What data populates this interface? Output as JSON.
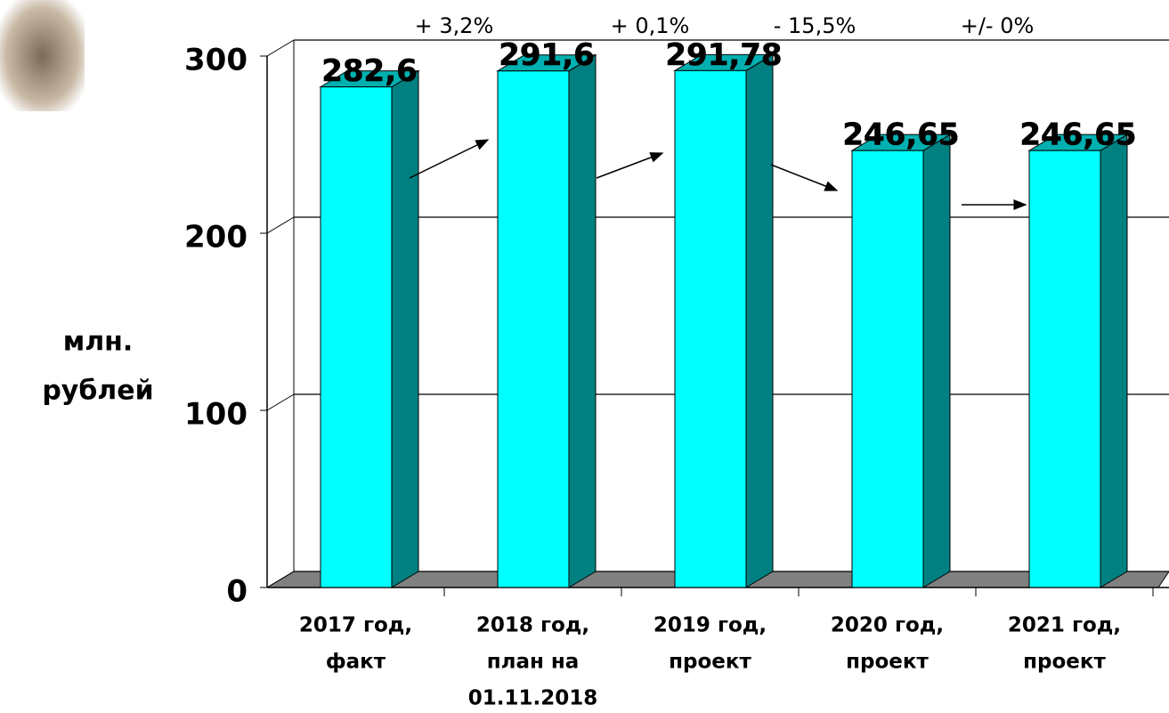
{
  "chart_data": {
    "type": "bar3d",
    "y_label": [
      "млн.",
      "рублей"
    ],
    "categories": [
      [
        "2017 год,",
        "факт"
      ],
      [
        "2018 год,",
        "план на",
        "01.11.2018"
      ],
      [
        "2019 год,",
        "проект"
      ],
      [
        "2020 год,",
        "проект"
      ],
      [
        "2021 год,",
        "проект"
      ]
    ],
    "values": [
      282.6,
      291.6,
      291.78,
      246.65,
      246.65
    ],
    "value_labels": [
      "282,6",
      "291,6",
      "291,78",
      "246,65",
      "246,65"
    ],
    "annotations": [
      "+ 3,2%",
      "+ 0,1%",
      "- 15,5%",
      "+/- 0%"
    ],
    "colors": {
      "front": "#00ffff",
      "side": "#008080",
      "top": "#00b0b0",
      "floor": "#808080"
    },
    "ylim": [
      0,
      300
    ],
    "yticks": [
      0,
      100,
      200,
      300
    ],
    "grid": true
  }
}
